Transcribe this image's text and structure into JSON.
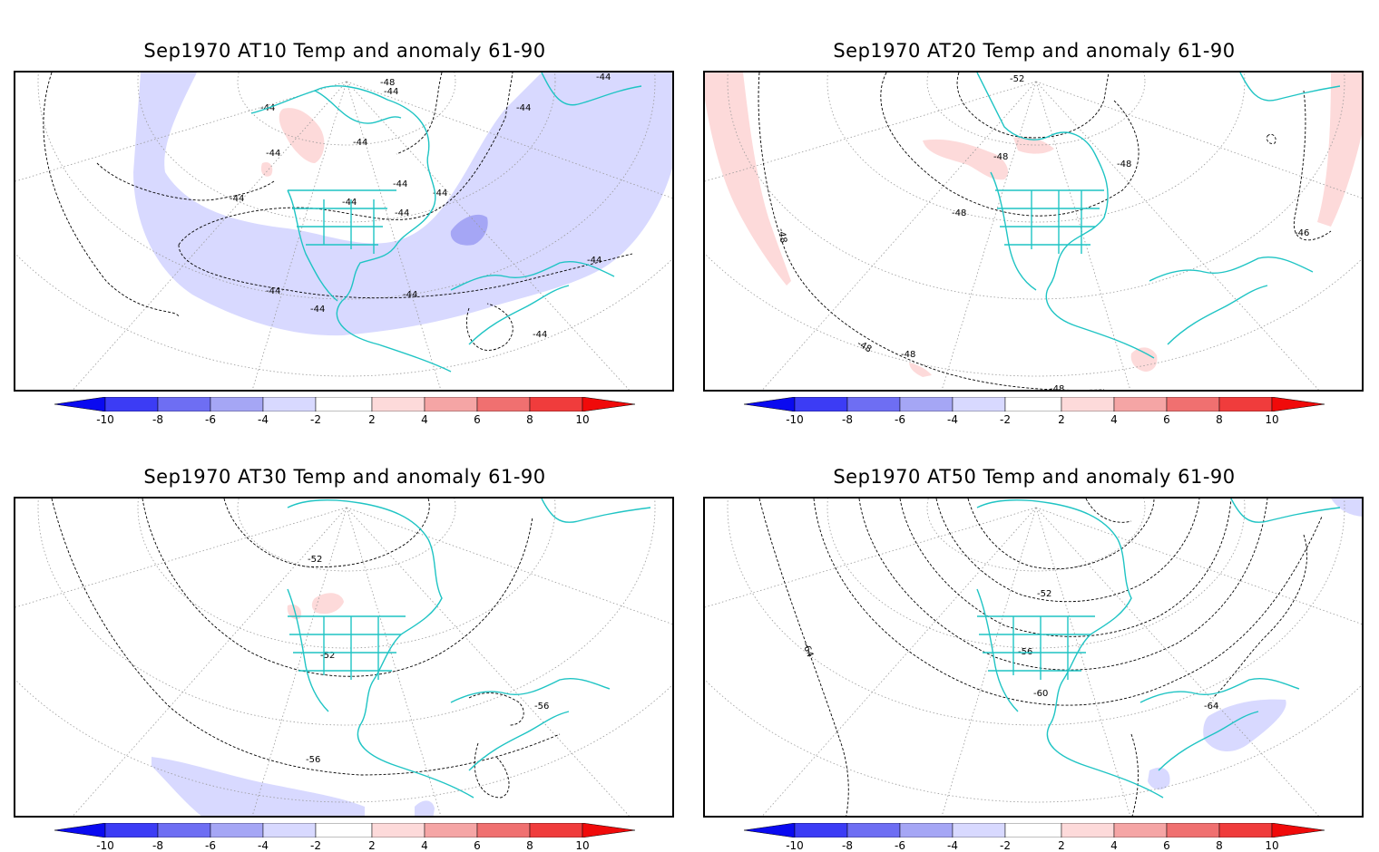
{
  "panels": [
    {
      "id": "at10",
      "title": "Sep1970 AT10 Temp and anomaly 61-90",
      "contour_labels": [
        "-48",
        "-44",
        "-44",
        "-44",
        "-44",
        "-44",
        "-44",
        "-44",
        "-44",
        "-44",
        "-44",
        "-44",
        "-44",
        "-44",
        "-44",
        "-44",
        "-44"
      ],
      "anomaly_regions": [
        {
          "sign": "negative",
          "level": "-2 to -4",
          "color": "#d8d9ff"
        },
        {
          "sign": "negative",
          "level": "-4 to -6",
          "color": "#a5a6f5"
        },
        {
          "sign": "positive",
          "level": "2 to 4",
          "color": "#fddada"
        }
      ]
    },
    {
      "id": "at20",
      "title": "Sep1970 AT20 Temp and anomaly 61-90",
      "contour_labels": [
        "-52",
        "-48",
        "-48",
        "-48",
        "-48",
        "-48",
        "-46",
        "-48",
        "-48"
      ],
      "anomaly_regions": [
        {
          "sign": "positive",
          "level": "2 to 4",
          "color": "#fddada"
        }
      ]
    },
    {
      "id": "at30",
      "title": "Sep1970 AT30 Temp and anomaly 61-90",
      "contour_labels": [
        "-52",
        "-52",
        "-56",
        "-56"
      ],
      "anomaly_regions": [
        {
          "sign": "positive",
          "level": "2 to 4",
          "color": "#fddada"
        },
        {
          "sign": "negative",
          "level": "-2 to -4",
          "color": "#d8d9ff"
        }
      ]
    },
    {
      "id": "at50",
      "title": "Sep1970 AT50 Temp and anomaly 61-90",
      "contour_labels": [
        "-52",
        "-56",
        "-60",
        "-64",
        "-64"
      ],
      "anomaly_regions": [
        {
          "sign": "negative",
          "level": "-2 to -4",
          "color": "#d8d9ff"
        }
      ]
    }
  ],
  "colorbar": {
    "labels": [
      "-10",
      "-8",
      "-6",
      "-4",
      "-2",
      "2",
      "4",
      "6",
      "8",
      "10"
    ],
    "colors": [
      "#0a0af0",
      "#3c3cf5",
      "#6e6ef3",
      "#a5a6f5",
      "#d8d9ff",
      "#ffffff",
      "#fddada",
      "#f5a5a5",
      "#f07070",
      "#f03c3c",
      "#f00a0a"
    ]
  },
  "style": {
    "coastline_color": "#1fc4c4",
    "grid_color": "#888888",
    "contour_color": "#000000"
  }
}
